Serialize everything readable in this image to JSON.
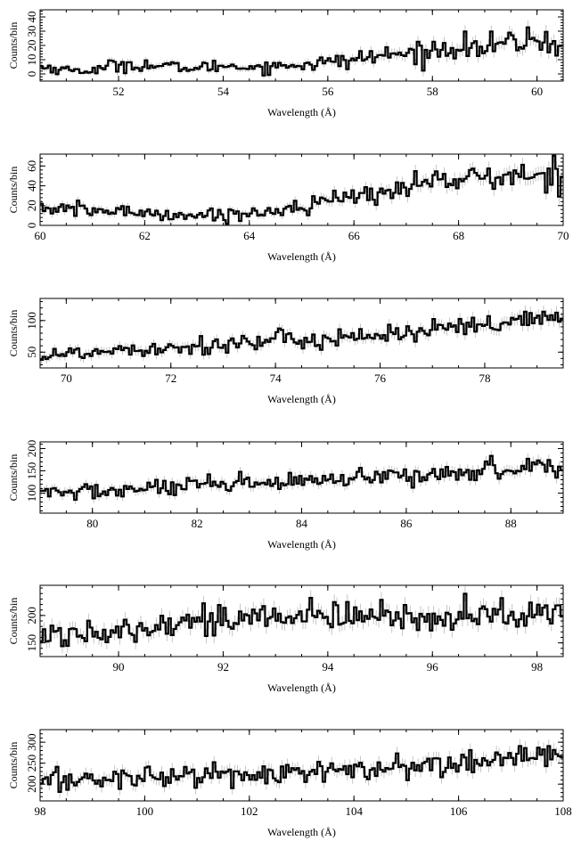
{
  "chart_data": [
    {
      "type": "line",
      "step": true,
      "xlabel": "Wavelength (Å)",
      "ylabel": "Counts/bin",
      "xlim": [
        50.5,
        60.5
      ],
      "ylim": [
        -5,
        45
      ],
      "xticks": [
        52,
        54,
        56,
        58,
        60
      ],
      "yticks": [
        0,
        10,
        20,
        30,
        40
      ],
      "error_bars": true,
      "series": [
        {
          "x": [
            50.5,
            51.0,
            51.5,
            52.0,
            52.5,
            53.0,
            53.5,
            54.0,
            54.5,
            55.0,
            55.5,
            56.0,
            56.5,
            57.0,
            57.5,
            58.0,
            58.5,
            59.0,
            59.5,
            60.0,
            60.5
          ],
          "values": [
            5,
            3,
            2,
            7,
            6,
            5,
            4,
            6,
            5,
            5,
            7,
            8,
            10,
            13,
            14,
            16,
            20,
            18,
            22,
            24,
            20
          ]
        }
      ]
    },
    {
      "type": "line",
      "step": true,
      "xlabel": "Wavelength (Å)",
      "ylabel": "Counts/bin",
      "xlim": [
        60,
        70
      ],
      "ylim": [
        0,
        72
      ],
      "xticks": [
        60,
        62,
        64,
        66,
        68,
        70
      ],
      "yticks": [
        0,
        20,
        40,
        60
      ],
      "error_bars": true,
      "series": [
        {
          "x": [
            60,
            60.5,
            61,
            61.5,
            62,
            62.5,
            63,
            63.5,
            64,
            64.5,
            65,
            65.5,
            66,
            66.5,
            67,
            67.5,
            68,
            68.5,
            69,
            69.5,
            70
          ],
          "values": [
            18,
            16,
            15,
            14,
            13,
            11,
            10,
            11,
            12,
            15,
            20,
            25,
            28,
            33,
            40,
            45,
            47,
            48,
            49,
            50,
            52
          ]
        }
      ]
    },
    {
      "type": "line",
      "step": true,
      "xlabel": "Wavelength (Å)",
      "ylabel": "Counts/bin",
      "xlim": [
        69.5,
        79.5
      ],
      "ylim": [
        25,
        135
      ],
      "xticks": [
        70,
        72,
        74,
        76,
        78
      ],
      "yticks": [
        50,
        100
      ],
      "error_bars": true,
      "series": [
        {
          "x": [
            69.5,
            70,
            70.5,
            71,
            71.5,
            72,
            72.5,
            73,
            73.5,
            74,
            74.5,
            75,
            75.5,
            76,
            76.5,
            77,
            77.5,
            78,
            78.5,
            79,
            79.5
          ],
          "values": [
            45,
            47,
            50,
            55,
            57,
            58,
            60,
            63,
            65,
            67,
            70,
            72,
            75,
            78,
            80,
            83,
            88,
            90,
            95,
            100,
            105
          ]
        }
      ]
    },
    {
      "type": "line",
      "step": true,
      "xlabel": "Wavelength (Å)",
      "ylabel": "Counts/bin",
      "xlim": [
        79,
        89
      ],
      "ylim": [
        55,
        215
      ],
      "xticks": [
        80,
        82,
        84,
        86,
        88
      ],
      "yticks": [
        100,
        150,
        200
      ],
      "error_bars": true,
      "series": [
        {
          "x": [
            79,
            79.5,
            80,
            80.5,
            81,
            81.5,
            82,
            82.5,
            83,
            83.5,
            84,
            84.5,
            85,
            85.5,
            86,
            86.5,
            87,
            87.5,
            88,
            88.5,
            89
          ],
          "values": [
            100,
            102,
            104,
            106,
            110,
            112,
            115,
            117,
            120,
            122,
            125,
            128,
            130,
            133,
            137,
            142,
            147,
            152,
            157,
            160,
            156
          ]
        }
      ]
    },
    {
      "type": "line",
      "step": true,
      "xlabel": "Wavelength (Å)",
      "ylabel": "Counts/bin",
      "xlim": [
        88.5,
        98.5
      ],
      "ylim": [
        125,
        255
      ],
      "xticks": [
        90,
        92,
        94,
        96,
        98
      ],
      "yticks": [
        150,
        200
      ],
      "error_bars": true,
      "series": [
        {
          "x": [
            88.5,
            89,
            89.5,
            90,
            90.5,
            91,
            91.5,
            92,
            92.5,
            93,
            93.5,
            94,
            94.5,
            95,
            95.5,
            96,
            96.5,
            97,
            97.5,
            98,
            98.5
          ],
          "values": [
            162,
            165,
            170,
            178,
            182,
            188,
            190,
            192,
            195,
            196,
            197,
            198,
            197,
            196,
            197,
            198,
            200,
            201,
            202,
            203,
            200
          ]
        }
      ]
    },
    {
      "type": "line",
      "step": true,
      "xlabel": "Wavelength (Å)",
      "ylabel": "Counts/bin",
      "xlim": [
        98,
        108
      ],
      "ylim": [
        160,
        330
      ],
      "xticks": [
        98,
        100,
        102,
        104,
        106,
        108
      ],
      "yticks": [
        200,
        250,
        300
      ],
      "error_bars": true,
      "series": [
        {
          "x": [
            98,
            98.5,
            99,
            99.5,
            100,
            100.5,
            101,
            101.5,
            102,
            102.5,
            103,
            103.5,
            104,
            104.5,
            105,
            105.5,
            106,
            106.5,
            107,
            107.5,
            108
          ],
          "values": [
            205,
            208,
            212,
            215,
            218,
            220,
            222,
            223,
            224,
            226,
            228,
            230,
            232,
            234,
            238,
            245,
            250,
            255,
            262,
            270,
            265
          ]
        }
      ]
    }
  ]
}
